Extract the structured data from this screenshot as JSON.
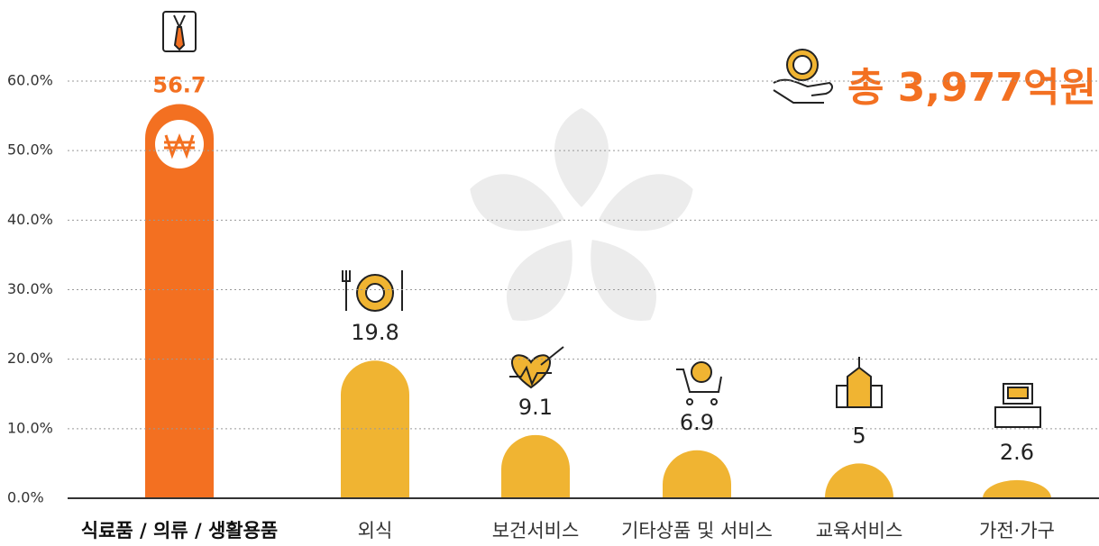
{
  "chart_data": {
    "type": "bar",
    "annotation": "총 3,977억원",
    "categories": [
      "식료품 / 의류 / 생활용품",
      "외식",
      "보건서비스",
      "기타상품 및 서비스",
      "교육서비스",
      "가전·가구"
    ],
    "values": [
      56.7,
      19.8,
      9.1,
      6.9,
      5.0,
      2.6
    ],
    "colors": [
      "#f37021",
      "#f0b432",
      "#f0b432",
      "#f0b432",
      "#f0b432",
      "#f0b432"
    ],
    "ylim": [
      0,
      60
    ],
    "yticks": [
      {
        "value": 0,
        "label": "0.0%"
      },
      {
        "value": 10,
        "label": "10.0%"
      },
      {
        "value": 20,
        "label": "20.0%"
      },
      {
        "value": 30,
        "label": "30.0%"
      },
      {
        "value": 40,
        "label": "40.0%"
      },
      {
        "value": 50,
        "label": "50.0%"
      },
      {
        "value": 60,
        "label": "60.0%"
      }
    ],
    "grid": true
  }
}
